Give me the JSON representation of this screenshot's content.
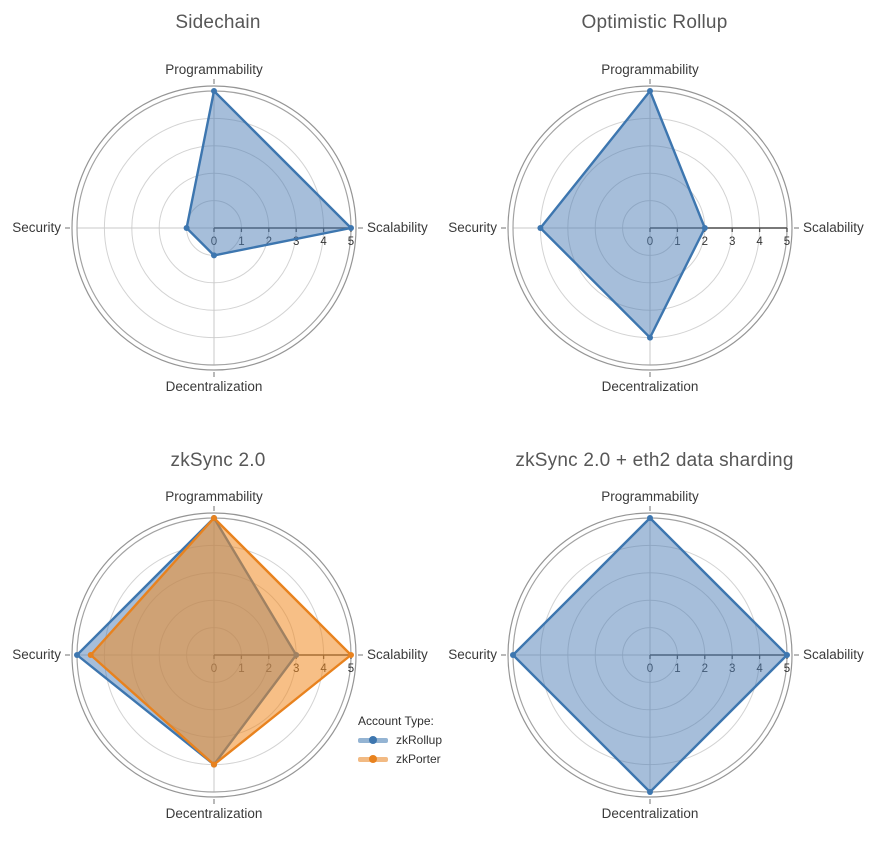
{
  "chart_data": [
    {
      "type": "radar",
      "title": "Sidechain",
      "axes": [
        "Programmability",
        "Scalability",
        "Decentralization",
        "Security"
      ],
      "radial_ticks": [
        0,
        1,
        2,
        3,
        4,
        5
      ],
      "radial_range": [
        0,
        5
      ],
      "grid": true,
      "legend_position": "none",
      "series": [
        {
          "name": "",
          "values": [
            5,
            5,
            1,
            1
          ],
          "stroke": "#3d76af",
          "fill": "rgba(78,126,181,0.5)"
        }
      ]
    },
    {
      "type": "radar",
      "title": "Optimistic Rollup",
      "axes": [
        "Programmability",
        "Scalability",
        "Decentralization",
        "Security"
      ],
      "radial_ticks": [
        0,
        1,
        2,
        3,
        4,
        5
      ],
      "radial_range": [
        0,
        5
      ],
      "grid": true,
      "legend_position": "none",
      "series": [
        {
          "name": "",
          "values": [
            5,
            2,
            4,
            4
          ],
          "stroke": "#3d76af",
          "fill": "rgba(78,126,181,0.5)"
        }
      ]
    },
    {
      "type": "radar",
      "title": "zkSync 2.0",
      "axes": [
        "Programmability",
        "Scalability",
        "Decentralization",
        "Security"
      ],
      "radial_ticks": [
        0,
        1,
        2,
        3,
        4,
        5
      ],
      "radial_range": [
        0,
        5
      ],
      "grid": true,
      "legend_title": "Account Type:",
      "legend_position": "right",
      "series": [
        {
          "name": "zkRollup",
          "values": [
            5,
            3,
            4,
            5
          ],
          "stroke": "#3d76af",
          "fill": "rgba(78,126,181,0.5)"
        },
        {
          "name": "zkPorter",
          "values": [
            5,
            5,
            4,
            4.5
          ],
          "stroke": "#e8821e",
          "fill": "rgba(240,138,34,0.55)"
        }
      ]
    },
    {
      "type": "radar",
      "title": "zkSync 2.0 + eth2 data sharding",
      "axes": [
        "Programmability",
        "Scalability",
        "Decentralization",
        "Security"
      ],
      "radial_ticks": [
        0,
        1,
        2,
        3,
        4,
        5
      ],
      "radial_range": [
        0,
        5
      ],
      "grid": true,
      "legend_position": "none",
      "series": [
        {
          "name": "",
          "values": [
            5,
            5,
            5,
            5
          ],
          "stroke": "#3d76af",
          "fill": "rgba(78,126,181,0.5)"
        }
      ]
    }
  ]
}
